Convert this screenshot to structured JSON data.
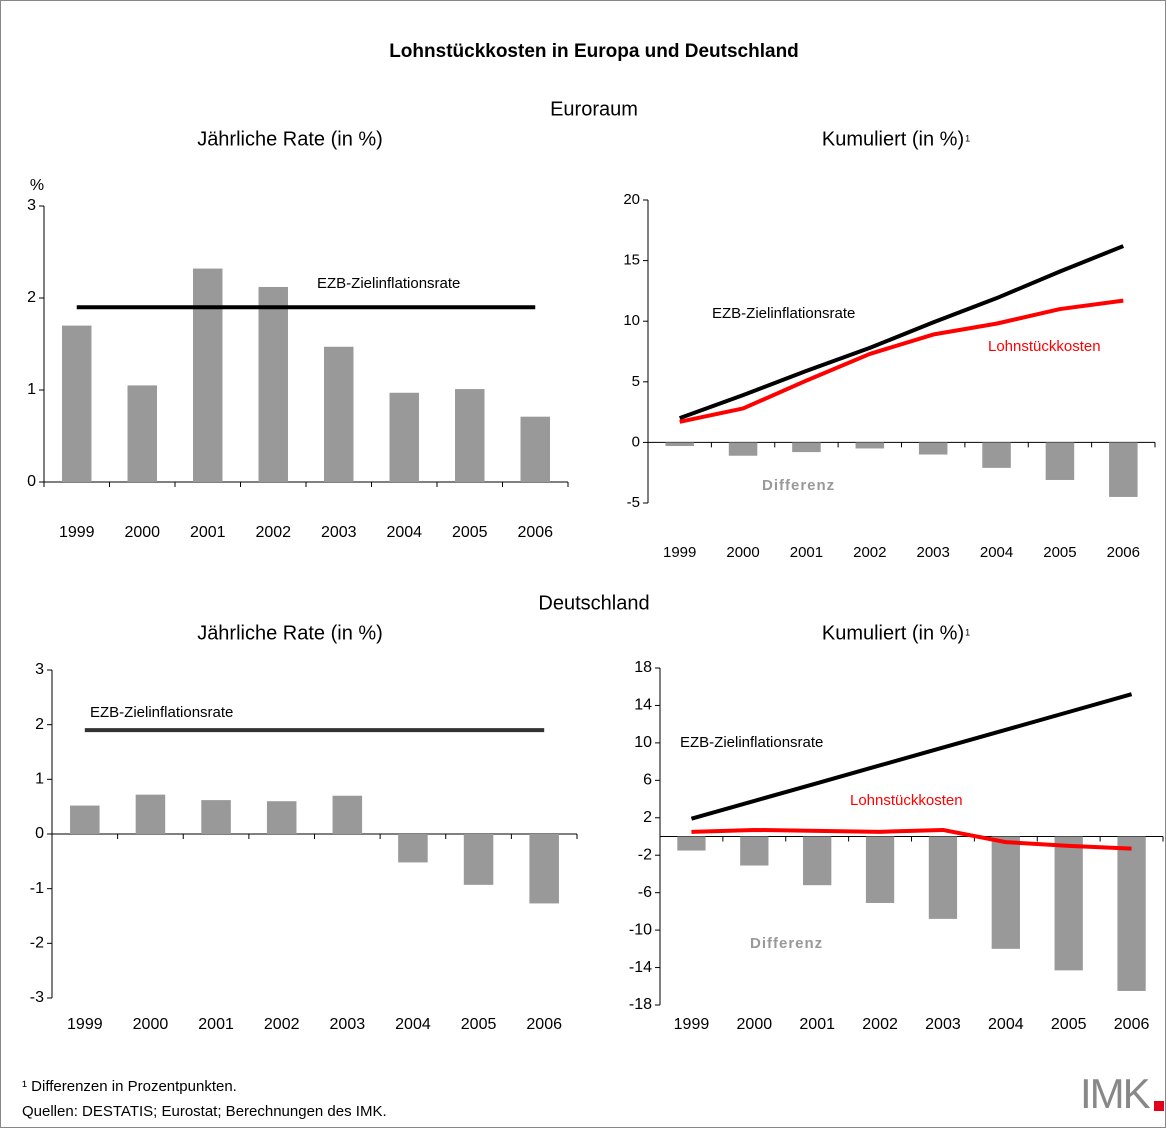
{
  "title": "Lohnstückkosten in Europa und Deutschland",
  "sections": [
    "Euroraum",
    "Deutschland"
  ],
  "footnotes": [
    "¹ Differenzen in Prozentpunkten.",
    "Quellen: DESTATIS; Eurostat; Berechnungen des IMK."
  ],
  "logo": "IMK",
  "chart_data": [
    {
      "type": "bar",
      "subtitle": "Jährliche Rate (in %)",
      "y_label": "%",
      "categories": [
        "1999",
        "2000",
        "2001",
        "2002",
        "2003",
        "2004",
        "2005",
        "2006"
      ],
      "ylim": [
        0,
        3
      ],
      "yticks": [
        0,
        1,
        2,
        3
      ],
      "series": [
        {
          "type": "bar",
          "color": "#999999",
          "values": [
            1.7,
            1.05,
            2.32,
            2.12,
            1.47,
            0.97,
            1.01,
            0.71
          ]
        },
        {
          "type": "line",
          "name": "EZB-Zielinflationsrate",
          "color": "#000000",
          "values": [
            1.9,
            1.9,
            1.9,
            1.9,
            1.9,
            1.9,
            1.9,
            1.9
          ]
        }
      ]
    },
    {
      "type": "combo",
      "subtitle": "Kumuliert (in %)",
      "subtitle_ref": "1",
      "categories": [
        "1999",
        "2000",
        "2001",
        "2002",
        "2003",
        "2004",
        "2005",
        "2006"
      ],
      "ylim": [
        -5,
        20
      ],
      "yticks": [
        -5,
        0,
        5,
        10,
        15,
        20
      ],
      "series": [
        {
          "type": "line",
          "name": "EZB-Zielinflationsrate",
          "color": "#000000",
          "values": [
            2.0,
            3.9,
            5.9,
            7.8,
            9.9,
            11.9,
            14.1,
            16.2
          ]
        },
        {
          "type": "line",
          "name": "Lohnstückkosten",
          "color": "#ff0000",
          "values": [
            1.7,
            2.8,
            5.1,
            7.3,
            8.9,
            9.8,
            11.0,
            11.7
          ]
        },
        {
          "type": "bar",
          "name": "Differenz",
          "color": "#999999",
          "values": [
            -0.3,
            -1.1,
            -0.8,
            -0.5,
            -1.0,
            -2.1,
            -3.1,
            -4.5
          ]
        }
      ]
    },
    {
      "type": "bar",
      "subtitle": "Jährliche Rate (in %)",
      "categories": [
        "1999",
        "2000",
        "2001",
        "2002",
        "2003",
        "2004",
        "2005",
        "2006"
      ],
      "ylim": [
        -3,
        3
      ],
      "yticks": [
        -3,
        -2,
        -1,
        0,
        1,
        2,
        3
      ],
      "series": [
        {
          "type": "bar",
          "color": "#999999",
          "values": [
            0.52,
            0.72,
            0.62,
            0.6,
            0.7,
            -0.52,
            -0.93,
            -1.27
          ]
        },
        {
          "type": "line",
          "name": "EZB-Zielinflationsrate",
          "color": "#333333",
          "values": [
            1.9,
            1.9,
            1.9,
            1.9,
            1.9,
            1.9,
            1.9,
            1.9
          ]
        }
      ]
    },
    {
      "type": "combo",
      "subtitle": "Kumuliert (in %)",
      "subtitle_ref": "1",
      "categories": [
        "1999",
        "2000",
        "2001",
        "2002",
        "2003",
        "2004",
        "2005",
        "2006"
      ],
      "ylim": [
        -18,
        18
      ],
      "yticks": [
        -18,
        -14,
        -10,
        -6,
        -2,
        2,
        6,
        10,
        14,
        18
      ],
      "series": [
        {
          "type": "line",
          "name": "EZB-Zielinflationsrate",
          "color": "#000000",
          "values": [
            1.9,
            3.8,
            5.7,
            7.6,
            9.5,
            11.4,
            13.3,
            15.2
          ]
        },
        {
          "type": "line",
          "name": "Lohnstückkosten",
          "color": "#ff0000",
          "values": [
            0.5,
            0.7,
            0.6,
            0.5,
            0.7,
            -0.6,
            -1.0,
            -1.3
          ]
        },
        {
          "type": "bar",
          "name": "Differenz",
          "color": "#999999",
          "values": [
            -1.5,
            -3.1,
            -5.2,
            -7.1,
            -8.8,
            -12.0,
            -14.3,
            -16.5
          ]
        }
      ]
    }
  ]
}
